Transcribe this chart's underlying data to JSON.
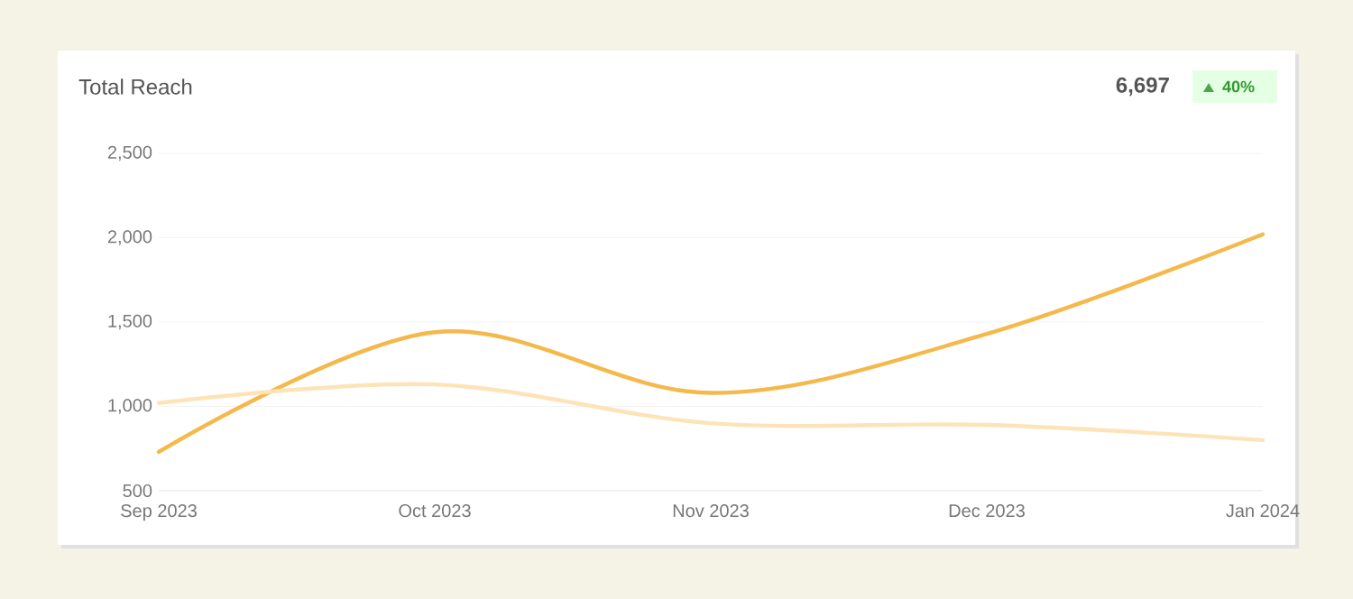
{
  "chart_data": {
    "type": "line",
    "title": "Total Reach",
    "annotations": [
      "6,697",
      "40%"
    ],
    "categories": [
      "Sep 2023",
      "Oct 2023",
      "Nov 2023",
      "Dec 2023",
      "Jan 2024"
    ],
    "series": [
      {
        "color": "#f5b84b",
        "values": [
          730,
          1440,
          1080,
          1430,
          2020
        ]
      },
      {
        "color": "#fde4b8",
        "values": [
          1020,
          1130,
          900,
          890,
          800
        ]
      }
    ],
    "ylim": [
      500,
      2500
    ],
    "yticks": [
      {
        "value": 500,
        "label": "500"
      },
      {
        "value": 1000,
        "label": "1,000"
      },
      {
        "value": 1500,
        "label": "1,500"
      },
      {
        "value": 2000,
        "label": "2,000"
      },
      {
        "value": 2500,
        "label": "2,500"
      }
    ],
    "grid": "y",
    "marker": "none",
    "line_style": "solid"
  }
}
